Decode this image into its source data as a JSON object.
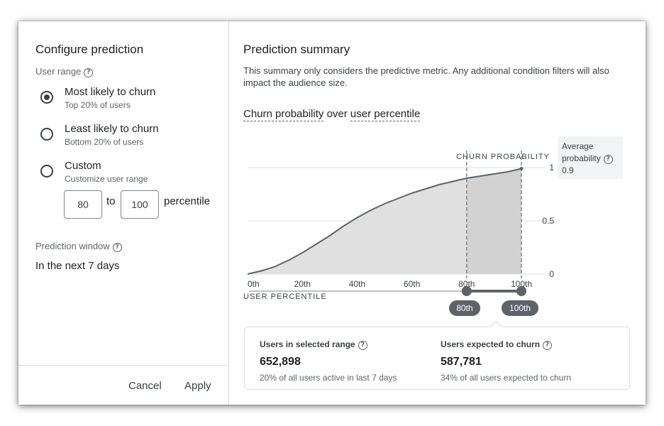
{
  "left": {
    "title": "Configure prediction",
    "user_range_label": "User range",
    "options": [
      {
        "label": "Most likely to churn",
        "sub": "Top 20% of users",
        "checked": true
      },
      {
        "label": "Least likely to churn",
        "sub": "Bottom 20% of users",
        "checked": false
      },
      {
        "label": "Custom",
        "sub": "Customize user range",
        "checked": false
      }
    ],
    "custom": {
      "from": "80",
      "to_label": "to",
      "to": "100",
      "unit": "percentile"
    },
    "window_label": "Prediction window",
    "window_value": "In the next 7 days",
    "cancel": "Cancel",
    "apply": "Apply"
  },
  "right": {
    "title": "Prediction summary",
    "description": "This summary only considers the predictive metric. Any additional condition filters will also impact the audience size.",
    "chart_title_a": "Churn probability",
    "chart_title_mid": " over ",
    "chart_title_b": "user percentile",
    "average": {
      "label": "Average probability",
      "value": "0.9"
    },
    "stats": {
      "selected": {
        "title": "Users in selected range",
        "value": "652,898",
        "sub": "20% of all users active in last 7 days"
      },
      "churn": {
        "title": "Users expected to churn",
        "value": "587,781",
        "sub": "34% of all users expected to churn"
      }
    },
    "slider": {
      "low": 80,
      "high": 100,
      "low_label": "80th",
      "high_label": "100th"
    }
  },
  "chart_data": {
    "type": "area",
    "ylabel": "CHURN PROBABILITY",
    "xlabel": "USER PERCENTILE",
    "x_ticks": [
      "0th",
      "20th",
      "40th",
      "60th",
      "80th",
      "100th"
    ],
    "y_ticks": [
      "1",
      "0.5",
      "0"
    ],
    "xlim": [
      0,
      100
    ],
    "ylim": [
      0,
      1
    ],
    "x": [
      0,
      5,
      10,
      15,
      20,
      25,
      30,
      35,
      40,
      45,
      50,
      55,
      60,
      65,
      70,
      75,
      80,
      85,
      90,
      95,
      100
    ],
    "y": [
      0.0,
      0.03,
      0.07,
      0.13,
      0.2,
      0.28,
      0.36,
      0.45,
      0.53,
      0.6,
      0.66,
      0.71,
      0.76,
      0.8,
      0.84,
      0.87,
      0.9,
      0.92,
      0.94,
      0.96,
      0.99
    ],
    "highlight_range": [
      80,
      100
    ],
    "grid": true,
    "colors": {
      "area": "#e0e0e0",
      "area_highlight": "#d2d2d2",
      "line": "#5f6368",
      "grid": "#dadce0"
    }
  }
}
